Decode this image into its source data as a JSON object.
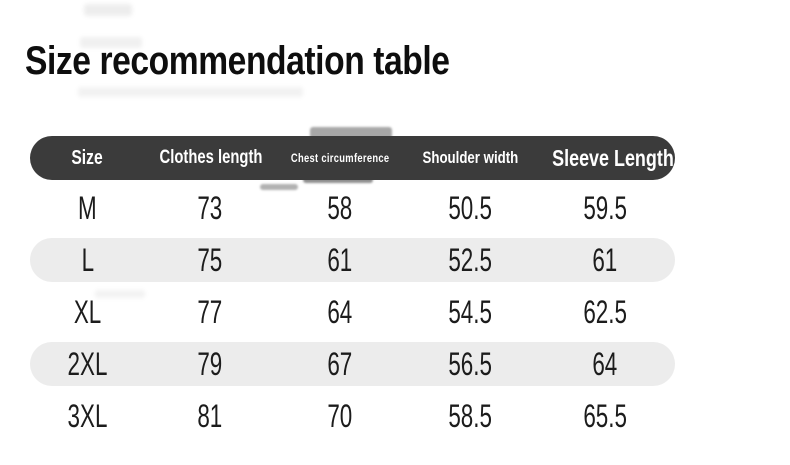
{
  "title": "Size recommendation table",
  "table": {
    "headers": [
      "Size",
      "Clothes length",
      "Chest circumference",
      "Shoulder width",
      "Sleeve Length"
    ],
    "rows": [
      {
        "cells": [
          "M",
          "73",
          "58",
          "50.5",
          "59.5"
        ]
      },
      {
        "cells": [
          "L",
          "75",
          "61",
          "52.5",
          "61"
        ]
      },
      {
        "cells": [
          "XL",
          "77",
          "64",
          "54.5",
          "62.5"
        ]
      },
      {
        "cells": [
          "2XL",
          "79",
          "67",
          "56.5",
          "64"
        ]
      },
      {
        "cells": [
          "3XL",
          "81",
          "70",
          "58.5",
          "65.5"
        ]
      }
    ]
  },
  "colors": {
    "header_bg": "#3b3b3b",
    "header_text": "#ffffff",
    "alt_row_bg": "#ececec",
    "text": "#1c1c1c",
    "background": "#ffffff"
  },
  "chart_data": {
    "type": "table",
    "title": "Size recommendation table",
    "columns": [
      "Size",
      "Clothes length",
      "Chest circumference",
      "Shoulder width",
      "Sleeve Length"
    ],
    "rows": [
      [
        "M",
        73,
        58,
        50.5,
        59.5
      ],
      [
        "L",
        75,
        61,
        52.5,
        61
      ],
      [
        "XL",
        77,
        64,
        54.5,
        62.5
      ],
      [
        "2XL",
        79,
        67,
        56.5,
        64
      ],
      [
        "3XL",
        81,
        70,
        58.5,
        65.5
      ]
    ],
    "layout": {
      "header_style": "dark-pill",
      "row_style": "alternating-gray-pills",
      "values_unit_implied": "cm"
    }
  }
}
